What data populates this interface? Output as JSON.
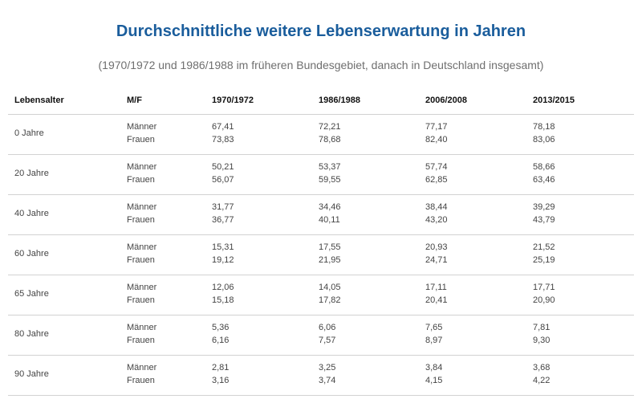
{
  "title": "Durchschnittliche weitere Lebenserwartung in Jahren",
  "subtitle": "(1970/1972 und 1986/1988 im früheren Bundesgebiet, danach in Deutschland insgesamt)",
  "colors": {
    "title": "#1a5d9c",
    "text": "#444444",
    "rule": "#d2d2d2"
  },
  "chart_data": {
    "type": "table",
    "title": "Durchschnittliche weitere Lebenserwartung in Jahren",
    "subtitle": "(1970/1972 und 1986/1988 im früheren Bundesgebiet, danach in Deutschland insgesamt)",
    "columns": [
      "Lebensalter",
      "M/F",
      "1970/1972",
      "1986/1988",
      "2006/2008",
      "2013/2015"
    ],
    "rows": [
      {
        "age": "0 Jahre",
        "maenner_label": "Männer",
        "frauen_label": "Frauen",
        "maenner": [
          "67,41",
          "72,21",
          "77,17",
          "78,18"
        ],
        "frauen": [
          "73,83",
          "78,68",
          "82,40",
          "83,06"
        ]
      },
      {
        "age": "20 Jahre",
        "maenner_label": "Männer",
        "frauen_label": "Frauen",
        "maenner": [
          "50,21",
          "53,37",
          "57,74",
          "58,66"
        ],
        "frauen": [
          "56,07",
          "59,55",
          "62,85",
          "63,46"
        ]
      },
      {
        "age": "40 Jahre",
        "maenner_label": "Männer",
        "frauen_label": "Frauen",
        "maenner": [
          "31,77",
          "34,46",
          "38,44",
          "39,29"
        ],
        "frauen": [
          "36,77",
          "40,11",
          "43,20",
          "43,79"
        ]
      },
      {
        "age": "60 Jahre",
        "maenner_label": "Männer",
        "frauen_label": "Frauen",
        "maenner": [
          "15,31",
          "17,55",
          "20,93",
          "21,52"
        ],
        "frauen": [
          "19,12",
          "21,95",
          "24,71",
          "25,19"
        ]
      },
      {
        "age": "65 Jahre",
        "maenner_label": "Männer",
        "frauen_label": "Frauen",
        "maenner": [
          "12,06",
          "14,05",
          "17,11",
          "17,71"
        ],
        "frauen": [
          "15,18",
          "17,82",
          "20,41",
          "20,90"
        ]
      },
      {
        "age": "80 Jahre",
        "maenner_label": "Männer",
        "frauen_label": "Frauen",
        "maenner": [
          "5,36",
          "6,06",
          "7,65",
          "7,81"
        ],
        "frauen": [
          "6,16",
          "7,57",
          "8,97",
          "9,30"
        ]
      },
      {
        "age": "90 Jahre",
        "maenner_label": "Männer",
        "frauen_label": "Frauen",
        "maenner": [
          "2,81",
          "3,25",
          "3,84",
          "3,68"
        ],
        "frauen": [
          "3,16",
          "3,74",
          "4,15",
          "4,22"
        ]
      }
    ]
  }
}
